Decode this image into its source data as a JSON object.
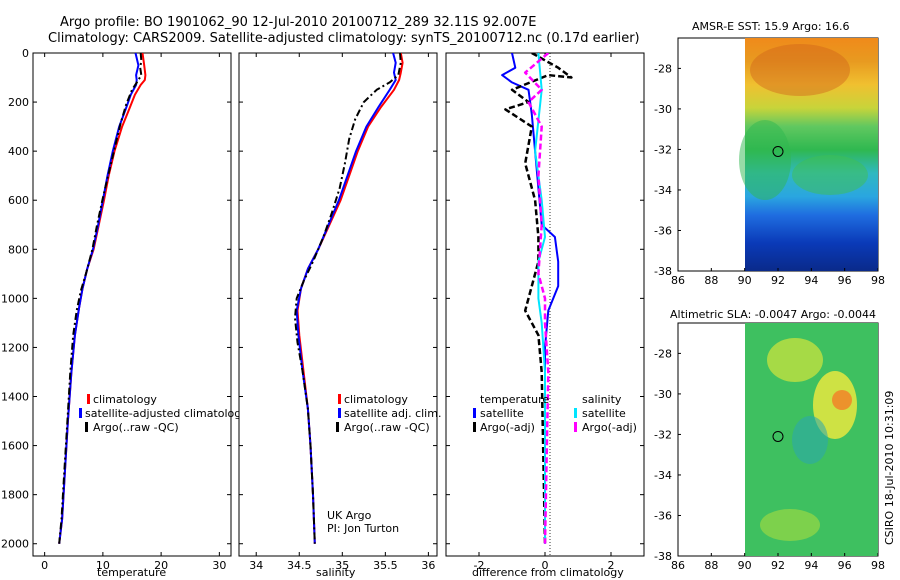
{
  "header": {
    "line1": "Argo profile: BO 1901062_90 12-Jul-2010 20100712_289 32.11S 92.007E",
    "line2": "Climatology: CARS2009. Satellite-adjusted climatology: synTS_20100712.nc (0.17d earlier)"
  },
  "colors": {
    "red": "#ff0000",
    "blue": "#0000ff",
    "black": "#000000",
    "cyan": "#00e5ff",
    "magenta": "#ff00ff"
  },
  "chart_data": [
    {
      "type": "line",
      "id": "temperature",
      "xlabel": "temperature",
      "xlim": [
        -2,
        32
      ],
      "ylim": [
        0,
        2050
      ],
      "xticks": [
        0,
        10,
        20,
        30
      ],
      "yticks": [
        0,
        200,
        400,
        600,
        800,
        1000,
        1200,
        1400,
        1600,
        1800,
        2000
      ],
      "legend": [
        "climatology",
        "satellite-adjusted climatology",
        "Argo(..raw -QC)"
      ],
      "series": [
        {
          "name": "climatology",
          "color": "red",
          "style": "solid",
          "points": [
            [
              16.8,
              0
            ],
            [
              17.1,
              50
            ],
            [
              17.3,
              90
            ],
            [
              17.2,
              110
            ],
            [
              16.5,
              130
            ],
            [
              15.5,
              170
            ],
            [
              14.5,
              230
            ],
            [
              13.3,
              300
            ],
            [
              12.0,
              400
            ],
            [
              11.0,
              500
            ],
            [
              10.2,
              600
            ],
            [
              9.3,
              700
            ],
            [
              8.4,
              800
            ],
            [
              7.3,
              880
            ],
            [
              6.5,
              960
            ],
            [
              5.9,
              1040
            ],
            [
              5.2,
              1150
            ],
            [
              4.6,
              1300
            ],
            [
              4.0,
              1500
            ],
            [
              3.5,
              1700
            ],
            [
              3.0,
              1900
            ],
            [
              2.5,
              2000
            ]
          ]
        },
        {
          "name": "satellite-adjusted climatology",
          "color": "blue",
          "style": "solid",
          "points": [
            [
              15.6,
              0
            ],
            [
              16.1,
              50
            ],
            [
              15.7,
              90
            ],
            [
              15.8,
              110
            ],
            [
              15.7,
              130
            ],
            [
              14.8,
              170
            ],
            [
              13.9,
              230
            ],
            [
              12.8,
              300
            ],
            [
              11.7,
              400
            ],
            [
              10.8,
              500
            ],
            [
              10.0,
              600
            ],
            [
              9.2,
              700
            ],
            [
              8.3,
              800
            ],
            [
              7.3,
              880
            ],
            [
              6.5,
              960
            ],
            [
              5.9,
              1040
            ],
            [
              5.2,
              1150
            ],
            [
              4.6,
              1300
            ],
            [
              4.0,
              1500
            ],
            [
              3.5,
              1700
            ],
            [
              3.0,
              1900
            ],
            [
              2.5,
              2000
            ]
          ]
        },
        {
          "name": "Argo(..raw -QC)",
          "color": "black",
          "style": "dashdot",
          "points": [
            [
              16.5,
              0
            ],
            [
              16.6,
              30
            ],
            [
              16.4,
              60
            ],
            [
              16.6,
              90
            ],
            [
              16.1,
              110
            ],
            [
              15.0,
              150
            ],
            [
              14.0,
              210
            ],
            [
              13.0,
              290
            ],
            [
              12.0,
              390
            ],
            [
              11.0,
              490
            ],
            [
              10.0,
              590
            ],
            [
              9.0,
              700
            ],
            [
              8.2,
              800
            ],
            [
              7.2,
              890
            ],
            [
              6.2,
              970
            ],
            [
              5.5,
              1050
            ],
            [
              4.9,
              1150
            ],
            [
              4.4,
              1300
            ],
            [
              3.9,
              1500
            ],
            [
              3.4,
              1700
            ],
            [
              2.9,
              1900
            ],
            [
              2.5,
              2000
            ]
          ]
        }
      ]
    },
    {
      "type": "line",
      "id": "salinity",
      "xlabel": "salinity",
      "xlim": [
        33.8,
        36.1
      ],
      "ylim": [
        0,
        2050
      ],
      "xticks": [
        34,
        34.5,
        35,
        35.5,
        36
      ],
      "legend": [
        "climatology",
        "satellite adj. clim.",
        "Argo(..raw -QC)"
      ],
      "annotation": [
        "UK Argo",
        "PI: Jon Turton"
      ],
      "series": [
        {
          "name": "climatology",
          "color": "red",
          "style": "solid",
          "points": [
            [
              35.68,
              0
            ],
            [
              35.7,
              40
            ],
            [
              35.68,
              80
            ],
            [
              35.66,
              110
            ],
            [
              35.6,
              150
            ],
            [
              35.45,
              220
            ],
            [
              35.3,
              300
            ],
            [
              35.18,
              400
            ],
            [
              35.08,
              500
            ],
            [
              34.98,
              600
            ],
            [
              34.85,
              700
            ],
            [
              34.72,
              800
            ],
            [
              34.6,
              880
            ],
            [
              34.52,
              960
            ],
            [
              34.48,
              1050
            ],
            [
              34.5,
              1150
            ],
            [
              34.55,
              1300
            ],
            [
              34.6,
              1450
            ],
            [
              34.63,
              1600
            ],
            [
              34.66,
              1800
            ],
            [
              34.68,
              2000
            ]
          ]
        },
        {
          "name": "satellite adj. clim.",
          "color": "blue",
          "style": "solid",
          "points": [
            [
              35.59,
              0
            ],
            [
              35.62,
              40
            ],
            [
              35.6,
              80
            ],
            [
              35.62,
              110
            ],
            [
              35.55,
              150
            ],
            [
              35.42,
              220
            ],
            [
              35.28,
              300
            ],
            [
              35.16,
              400
            ],
            [
              35.06,
              500
            ],
            [
              34.96,
              600
            ],
            [
              34.84,
              700
            ],
            [
              34.72,
              800
            ],
            [
              34.6,
              880
            ],
            [
              34.52,
              960
            ],
            [
              34.47,
              1050
            ],
            [
              34.49,
              1150
            ],
            [
              34.54,
              1300
            ],
            [
              34.6,
              1450
            ],
            [
              34.63,
              1600
            ],
            [
              34.66,
              1800
            ],
            [
              34.68,
              2000
            ]
          ]
        },
        {
          "name": "Argo(..raw -QC)",
          "color": "black",
          "style": "dashdot",
          "points": [
            [
              35.67,
              0
            ],
            [
              35.68,
              40
            ],
            [
              35.65,
              90
            ],
            [
              35.55,
              120
            ],
            [
              35.4,
              150
            ],
            [
              35.25,
              200
            ],
            [
              35.15,
              270
            ],
            [
              35.08,
              350
            ],
            [
              35.03,
              450
            ],
            [
              34.97,
              550
            ],
            [
              34.88,
              650
            ],
            [
              34.78,
              750
            ],
            [
              34.66,
              850
            ],
            [
              34.55,
              930
            ],
            [
              34.47,
              1000
            ],
            [
              34.45,
              1080
            ],
            [
              34.48,
              1180
            ],
            [
              34.54,
              1300
            ],
            [
              34.6,
              1450
            ],
            [
              34.63,
              1600
            ],
            [
              34.66,
              1800
            ],
            [
              34.68,
              2000
            ]
          ]
        }
      ]
    },
    {
      "type": "line",
      "id": "difference",
      "xlabel": "difference from climatology",
      "xlim": [
        -3,
        3
      ],
      "ylim": [
        0,
        2050
      ],
      "xticks": [
        -2,
        0,
        2
      ],
      "legend_titles": [
        "temperature",
        "salinity"
      ],
      "legend": [
        "satellite",
        "Argo(-adj)",
        "satellite",
        "Argo(-adj)"
      ],
      "series": [
        {
          "name": "temperature satellite",
          "color": "blue",
          "style": "solid",
          "points": [
            [
              -1.0,
              0
            ],
            [
              -0.9,
              60
            ],
            [
              -1.3,
              90
            ],
            [
              -1.0,
              120
            ],
            [
              -0.5,
              150
            ],
            [
              -0.4,
              250
            ],
            [
              -0.3,
              400
            ],
            [
              -0.2,
              550
            ],
            [
              -0.1,
              700
            ],
            [
              0.3,
              750
            ],
            [
              0.4,
              850
            ],
            [
              0.4,
              950
            ],
            [
              0.1,
              1050
            ],
            [
              0.0,
              1200
            ],
            [
              0.0,
              2000
            ]
          ]
        },
        {
          "name": "temperature Argo(-adj)",
          "color": "black",
          "style": "dash",
          "points": [
            [
              -0.4,
              0
            ],
            [
              0.4,
              60
            ],
            [
              0.8,
              100
            ],
            [
              0.1,
              90
            ],
            [
              -1.0,
              150
            ],
            [
              -0.5,
              200
            ],
            [
              -1.2,
              230
            ],
            [
              -0.4,
              300
            ],
            [
              -0.6,
              450
            ],
            [
              -0.3,
              600
            ],
            [
              -0.2,
              750
            ],
            [
              -0.2,
              850
            ],
            [
              -0.4,
              950
            ],
            [
              -0.6,
              1050
            ],
            [
              -0.2,
              1150
            ],
            [
              -0.1,
              1300
            ],
            [
              0.0,
              2000
            ]
          ]
        },
        {
          "name": "salinity satellite",
          "color": "cyan",
          "style": "solid",
          "points": [
            [
              -0.2,
              0
            ],
            [
              -0.1,
              150
            ],
            [
              -0.3,
              400
            ],
            [
              -0.1,
              600
            ],
            [
              0.0,
              750
            ],
            [
              -0.2,
              850
            ],
            [
              -0.2,
              1000
            ],
            [
              -0.1,
              1100
            ],
            [
              0.0,
              1300
            ],
            [
              0.0,
              2000
            ]
          ]
        },
        {
          "name": "salinity Argo(-adj)",
          "color": "magenta",
          "style": "dash",
          "points": [
            [
              0.1,
              0
            ],
            [
              -0.6,
              80
            ],
            [
              -0.1,
              150
            ],
            [
              -0.5,
              200
            ],
            [
              -0.1,
              300
            ],
            [
              -0.2,
              500
            ],
            [
              -0.1,
              700
            ],
            [
              -0.2,
              900
            ],
            [
              0.0,
              1000
            ],
            [
              0.0,
              1100
            ],
            [
              0.1,
              1300
            ],
            [
              0.0,
              2000
            ]
          ]
        }
      ]
    },
    {
      "type": "heatmap",
      "id": "sst",
      "title": "AMSR-E SST: 15.9 Argo: 16.6",
      "xlim": [
        86,
        98
      ],
      "ylim": [
        -38,
        -26.5
      ],
      "xticks": [
        86,
        88,
        90,
        92,
        94,
        96,
        98
      ],
      "yticks": [
        -38,
        -36,
        -34,
        -32,
        -30,
        -28
      ],
      "marker": [
        92.0,
        -32.1
      ]
    },
    {
      "type": "heatmap",
      "id": "sla",
      "title": "Altimetric SLA: -0.0047 Argo: -0.0044",
      "xlim": [
        86,
        98
      ],
      "ylim": [
        -38,
        -26.5
      ],
      "xticks": [
        86,
        88,
        90,
        92,
        94,
        96,
        98
      ],
      "yticks": [
        -38,
        -36,
        -34,
        -32,
        -30,
        -28
      ],
      "marker": [
        92.0,
        -32.1
      ]
    }
  ],
  "footer": {
    "stamp": "CSIRO 18-Jul-2010 10:31:09"
  }
}
